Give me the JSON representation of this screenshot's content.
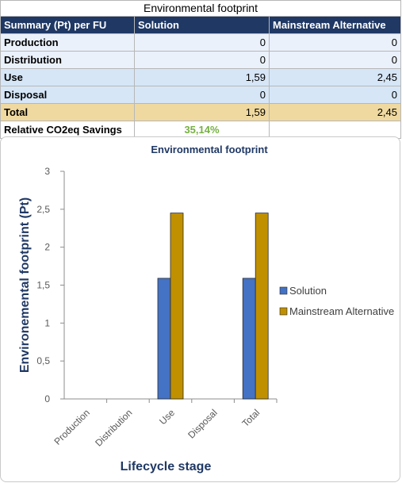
{
  "table": {
    "title": "Environmental footprint",
    "headers": [
      "Summary (Pt) per FU",
      "Solution",
      "Mainstream Alternative"
    ],
    "rows": [
      {
        "label": "Production",
        "solution": "0",
        "alternative": "0"
      },
      {
        "label": "Distribution",
        "solution": "0",
        "alternative": "0"
      },
      {
        "label": "Use",
        "solution": "1,59",
        "alternative": "2,45"
      },
      {
        "label": "Disposal",
        "solution": "0",
        "alternative": "0"
      },
      {
        "label": "Total",
        "solution": "1,59",
        "alternative": "2,45"
      }
    ],
    "savings_label": "Relative CO2eq Savings",
    "savings_value": "35,14%"
  },
  "colors": {
    "header_bg": "#1f3864",
    "row_light": "#eaf1fb",
    "row_dark": "#d6e6f7",
    "total_bg": "#efd9a0",
    "savings_text": "#76b041",
    "series_solution": "#4472c4",
    "series_alternative": "#c09000",
    "axis_title": "#1f3864"
  },
  "chart_data": {
    "type": "bar",
    "title": "Environmental footprint",
    "xlabel": "Lifecycle stage",
    "ylabel": "Environemental footprint (Pt)",
    "categories": [
      "Production",
      "Distribution",
      "Use",
      "Disposal",
      "Total"
    ],
    "series": [
      {
        "name": "Solution",
        "values": [
          0,
          0,
          1.59,
          0,
          1.59
        ]
      },
      {
        "name": "Mainstream Alternative",
        "values": [
          0,
          0,
          2.45,
          0,
          2.45
        ]
      }
    ],
    "ylim": [
      0,
      3
    ],
    "yticks": [
      0,
      0.5,
      1,
      1.5,
      2,
      2.5,
      3
    ],
    "ytick_labels": [
      "0",
      "0,5",
      "1",
      "1,5",
      "2",
      "2,5",
      "3"
    ],
    "grid": false,
    "legend_position": "right"
  }
}
